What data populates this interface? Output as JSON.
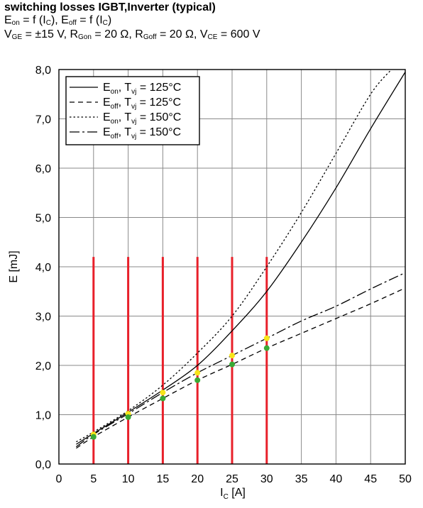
{
  "header": {
    "title": "switching losses  IGBT,Inverter (typical)",
    "func_pre": "E",
    "func_on_sub": "on",
    "func_mid": " = f (I",
    "func_c_sub": "C",
    "func_mid2": "), E",
    "func_off_sub": "off",
    "func_mid3": " = f (I",
    "func_c_sub2": "C",
    "func_end": ")",
    "cond_v": "V",
    "cond_ge_sub": "GE",
    "cond_v_val": " = ±15 V, R",
    "cond_gon_sub": "Gon",
    "cond_gon_val": " = 20 Ω, R",
    "cond_goff_sub": "Goff",
    "cond_goff_val": " = 20 Ω, V",
    "cond_ce_sub": "CE",
    "cond_ce_val": " = 600 V"
  },
  "chart_data": {
    "type": "line",
    "xlabel": "I",
    "xlabel_sub": "C",
    "xlabel_unit": " [A]",
    "ylabel": "E [mJ]",
    "xlim": [
      0,
      50
    ],
    "ylim": [
      0,
      8
    ],
    "x_ticks": [
      0,
      5,
      10,
      15,
      20,
      25,
      30,
      35,
      40,
      45,
      50
    ],
    "y_ticks": [
      "0,0",
      "1,0",
      "2,0",
      "3,0",
      "4,0",
      "5,0",
      "6,0",
      "7,0",
      "8,0"
    ],
    "grid": true,
    "legend_position": "top-left",
    "series": [
      {
        "name": "E",
        "name_sub": "on",
        "tvj": ", T",
        "tvj_sub": "vj",
        "temp": " = 125°C",
        "style": "solid",
        "x": [
          2.5,
          5,
          10,
          15,
          20,
          25,
          30,
          35,
          40,
          45,
          50
        ],
        "y": [
          0.4,
          0.62,
          1.05,
          1.5,
          2.0,
          2.7,
          3.5,
          4.5,
          5.6,
          6.8,
          7.95
        ]
      },
      {
        "name": "E",
        "name_sub": "off",
        "tvj": ", T",
        "tvj_sub": "vj",
        "temp": " = 125°C",
        "style": "dashed",
        "x": [
          2.5,
          5,
          10,
          15,
          20,
          25,
          30,
          35,
          40,
          45,
          50
        ],
        "y": [
          0.32,
          0.55,
          0.95,
          1.33,
          1.7,
          2.02,
          2.35,
          2.65,
          2.95,
          3.25,
          3.57
        ]
      },
      {
        "name": "E",
        "name_sub": "on",
        "tvj": ", T",
        "tvj_sub": "vj",
        "temp": " = 150°C",
        "style": "dotted",
        "x": [
          2.5,
          5,
          10,
          15,
          20,
          25,
          30,
          35,
          40,
          45,
          48
        ],
        "y": [
          0.45,
          0.65,
          1.08,
          1.6,
          2.25,
          3.0,
          4.0,
          5.1,
          6.3,
          7.5,
          8.0
        ]
      },
      {
        "name": "E",
        "name_sub": "off",
        "tvj": ", T",
        "tvj_sub": "vj",
        "temp": " = 150°C",
        "style": "dashdot",
        "x": [
          2.5,
          5,
          10,
          15,
          20,
          25,
          30,
          35,
          40,
          45,
          50
        ],
        "y": [
          0.35,
          0.6,
          1.02,
          1.45,
          1.85,
          2.2,
          2.55,
          2.9,
          3.2,
          3.55,
          3.88
        ]
      }
    ],
    "annotation_lines": {
      "x": [
        5,
        10,
        15,
        20,
        25,
        30
      ],
      "y_top": 4.2,
      "color": "#e8202a"
    },
    "markers_yellow": {
      "x": [
        5,
        10,
        15,
        20,
        25,
        30
      ],
      "y": [
        0.6,
        1.02,
        1.45,
        1.85,
        2.2,
        2.55
      ],
      "color": "#f7e51a"
    },
    "markers_green": {
      "x": [
        5,
        10,
        15,
        20,
        25,
        30
      ],
      "y": [
        0.55,
        0.95,
        1.33,
        1.7,
        2.02,
        2.35
      ],
      "color": "#3aaa35"
    }
  }
}
